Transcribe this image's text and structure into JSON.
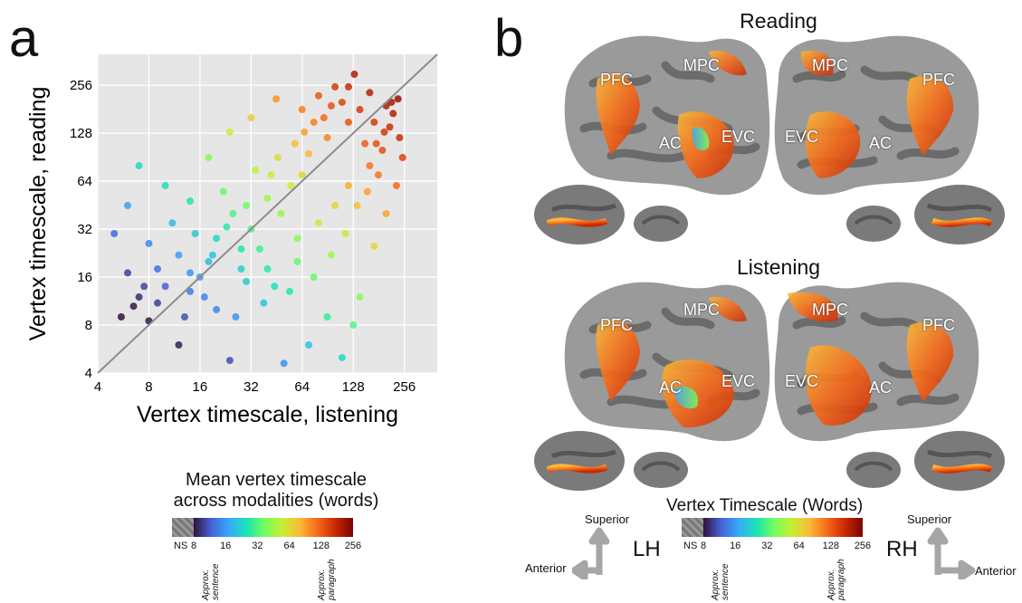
{
  "panel_a": {
    "letter": "a"
  },
  "panel_b": {
    "letter": "b"
  },
  "chart_data": {
    "type": "scatter",
    "xlabel": "Vertex timescale, listening",
    "ylabel": "Vertex timescale, reading",
    "x_scale": "log2",
    "y_scale": "log2",
    "xlim": [
      4,
      400
    ],
    "ylim": [
      4,
      400
    ],
    "x_ticks": [
      4,
      8,
      16,
      32,
      64,
      128,
      256
    ],
    "y_ticks": [
      4,
      8,
      16,
      32,
      64,
      128,
      256
    ],
    "grid": true,
    "identity_line": true,
    "colormap": "turbo",
    "color_by": "mean vertex timescale",
    "points": [
      [
        6.5,
        10.5
      ],
      [
        7,
        12
      ],
      [
        8,
        8.5
      ],
      [
        9,
        11
      ],
      [
        12,
        6
      ],
      [
        14,
        13
      ],
      [
        16,
        16
      ],
      [
        20,
        10
      ],
      [
        24,
        4.8
      ],
      [
        30,
        15
      ],
      [
        28,
        24
      ],
      [
        40,
        18
      ],
      [
        48,
        40
      ],
      [
        60,
        28
      ],
      [
        64,
        70
      ],
      [
        5,
        30
      ],
      [
        6,
        45
      ],
      [
        7,
        80
      ],
      [
        10,
        60
      ],
      [
        14,
        48
      ],
      [
        18,
        90
      ],
      [
        24,
        130
      ],
      [
        32,
        160
      ],
      [
        45,
        210
      ],
      [
        64,
        180
      ],
      [
        80,
        220
      ],
      [
        100,
        250
      ],
      [
        130,
        300
      ],
      [
        160,
        230
      ],
      [
        200,
        190
      ],
      [
        220,
        170
      ],
      [
        240,
        120
      ],
      [
        250,
        90
      ],
      [
        230,
        60
      ],
      [
        200,
        40
      ],
      [
        170,
        25
      ],
      [
        140,
        12
      ],
      [
        128,
        8
      ],
      [
        110,
        5
      ],
      [
        90,
        9
      ],
      [
        70,
        6
      ],
      [
        50,
        4.6
      ],
      [
        180,
        70
      ],
      [
        150,
        110
      ],
      [
        120,
        150
      ],
      [
        90,
        120
      ],
      [
        70,
        95
      ],
      [
        55,
        60
      ],
      [
        40,
        50
      ],
      [
        32,
        32
      ],
      [
        25,
        40
      ],
      [
        20,
        28
      ],
      [
        18,
        20
      ],
      [
        12,
        22
      ],
      [
        9,
        18
      ],
      [
        22,
        55
      ],
      [
        34,
        75
      ],
      [
        46,
        90
      ],
      [
        66,
        130
      ],
      [
        86,
        160
      ],
      [
        110,
        200
      ],
      [
        140,
        180
      ],
      [
        170,
        150
      ],
      [
        190,
        100
      ],
      [
        210,
        140
      ],
      [
        160,
        80
      ],
      [
        120,
        60
      ],
      [
        100,
        45
      ],
      [
        80,
        35
      ],
      [
        60,
        20
      ],
      [
        44,
        14
      ],
      [
        36,
        24
      ],
      [
        28,
        18
      ],
      [
        15,
        30
      ],
      [
        11,
        35
      ],
      [
        8,
        26
      ],
      [
        6,
        17
      ],
      [
        7.5,
        14
      ],
      [
        5.5,
        9
      ],
      [
        13,
        9
      ],
      [
        17,
        12
      ],
      [
        26,
        9
      ],
      [
        38,
        11
      ],
      [
        54,
        13
      ],
      [
        75,
        16
      ],
      [
        95,
        22
      ],
      [
        115,
        30
      ],
      [
        135,
        45
      ],
      [
        155,
        55
      ],
      [
        175,
        110
      ],
      [
        195,
        130
      ],
      [
        215,
        200
      ],
      [
        235,
        210
      ],
      [
        120,
        250
      ],
      [
        95,
        190
      ],
      [
        75,
        150
      ],
      [
        58,
        110
      ],
      [
        42,
        70
      ],
      [
        30,
        45
      ],
      [
        23,
        33
      ],
      [
        19,
        22
      ],
      [
        14,
        17
      ],
      [
        10,
        14
      ]
    ]
  },
  "colorbar_a": {
    "title_line1": "Mean vertex timescale",
    "title_line2": "across modalities (words)",
    "ns_label": "NS",
    "ticks": [
      "8",
      "16",
      "32",
      "64",
      "128",
      "256"
    ],
    "approx_sentence_1": "Approx.",
    "approx_sentence_2": "sentence",
    "approx_paragraph_1": "Approx.",
    "approx_paragraph_2": "paragraph"
  },
  "reading": {
    "title": "Reading",
    "rois": {
      "pfc_l": "PFC",
      "mpc_l": "MPC",
      "ac_l": "AC",
      "evc_l": "EVC",
      "mpc_r": "MPC",
      "pfc_r": "PFC",
      "evc_r": "EVC",
      "ac_r": "AC"
    }
  },
  "listening": {
    "title": "Listening",
    "rois": {
      "pfc_l": "PFC",
      "mpc_l": "MPC",
      "ac_l": "AC",
      "evc_l": "EVC",
      "mpc_r": "MPC",
      "pfc_r": "PFC",
      "evc_r": "EVC",
      "ac_r": "AC"
    }
  },
  "colorbar_b": {
    "title": "Vertex Timescale (Words)",
    "ns_label": "NS",
    "ticks": [
      "8",
      "16",
      "32",
      "64",
      "128",
      "256"
    ],
    "approx_sentence_1": "Approx.",
    "approx_sentence_2": "sentence",
    "approx_paragraph_1": "Approx.",
    "approx_paragraph_2": "paragraph"
  },
  "orientation_left": {
    "superior": "Superior",
    "anterior": "Anterior",
    "hemi": "LH"
  },
  "orientation_right": {
    "superior": "Superior",
    "anterior": "Anterior",
    "hemi": "RH"
  },
  "colors": {
    "plot_bg": "#e6e6e6",
    "grid": "#ffffff",
    "cortex_dark": "#6b6b6b",
    "cortex_light": "#9a9a9a",
    "arrow": "#a6a6a6"
  }
}
